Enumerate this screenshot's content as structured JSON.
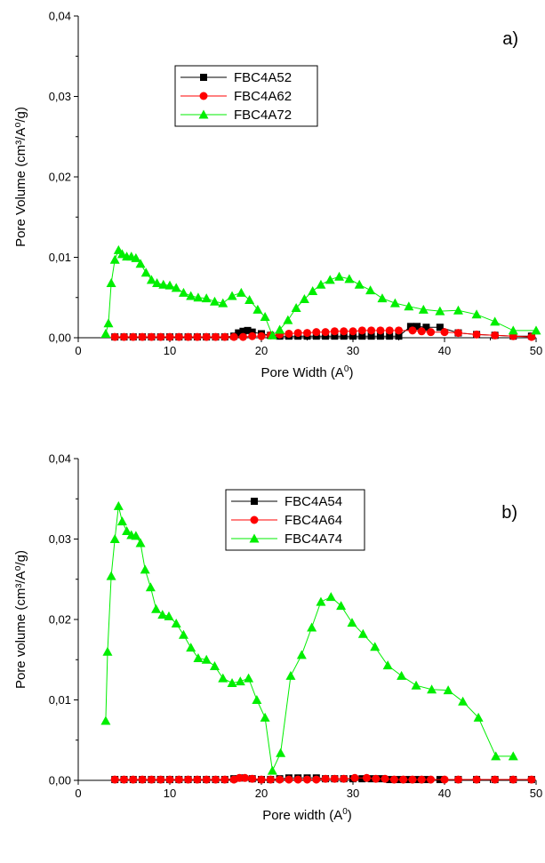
{
  "chart_data": [
    {
      "type": "line",
      "panel_label": "a)",
      "xlabel": "Pore Width (A",
      "xlabel_sup": "0",
      "xlabel_end": ")",
      "ylabel": "Pore Volume (cm³/A⁰/g)",
      "xlim": [
        0,
        50
      ],
      "ylim": [
        0,
        0.04
      ],
      "xticks": [
        0,
        10,
        20,
        30,
        40,
        50
      ],
      "yticks": [
        0,
        0.01,
        0.02,
        0.03,
        0.04
      ],
      "xtick_labels": [
        "0",
        "10",
        "20",
        "30",
        "40",
        "50"
      ],
      "ytick_labels": [
        "0,00",
        "0,01",
        "0,02",
        "0,03",
        "0,04"
      ],
      "legend_position": "upper-left",
      "series": [
        {
          "name": "FBC4A52",
          "color": "#000000",
          "marker": "square",
          "x": [
            4.0,
            5.0,
            6.0,
            7.0,
            8.0,
            9.0,
            10.0,
            11.0,
            12.0,
            13.0,
            14.0,
            15.0,
            16.0,
            17.0,
            17.5,
            18.0,
            18.5,
            19.0,
            20.0,
            21.0,
            22.0,
            23.0,
            24.0,
            25.0,
            26.0,
            27.0,
            28.0,
            29.0,
            30.0,
            31.0,
            32.0,
            33.0,
            34.0,
            35.0,
            36.3,
            37.0,
            38.0,
            39.5,
            41.5,
            43.5,
            45.5,
            47.5,
            49.5
          ],
          "y": [
            0.0001,
            0.0001,
            0.0001,
            0.0001,
            0.0001,
            0.0001,
            0.0001,
            0.0001,
            0.0001,
            0.0001,
            0.0001,
            0.0001,
            0.0001,
            0.0002,
            0.0006,
            0.0008,
            0.0009,
            0.0007,
            0.0005,
            0.0003,
            0.0002,
            0.0002,
            0.0002,
            0.0002,
            0.0002,
            0.0002,
            0.0002,
            0.0002,
            0.0002,
            0.0002,
            0.0002,
            0.0002,
            0.0002,
            0.0002,
            0.0014,
            0.0014,
            0.0013,
            0.0013,
            0.0006,
            0.0004,
            0.0003,
            0.0002,
            0.0002
          ]
        },
        {
          "name": "FBC4A62",
          "color": "#ff0000",
          "marker": "circle",
          "x": [
            4.0,
            5.0,
            6.0,
            7.0,
            8.0,
            9.0,
            10.0,
            11.0,
            12.0,
            13.0,
            14.0,
            15.0,
            16.0,
            17.0,
            18.0,
            19.0,
            20.0,
            21.0,
            22.0,
            23.0,
            24.0,
            25.0,
            26.0,
            27.0,
            28.0,
            29.0,
            30.0,
            31.0,
            32.0,
            33.0,
            34.0,
            35.0,
            36.5,
            37.5,
            38.5,
            40.0,
            41.5,
            43.5,
            45.5,
            47.5,
            49.5
          ],
          "y": [
            0.0001,
            0.0001,
            0.0001,
            0.0001,
            0.0001,
            0.0001,
            0.0001,
            0.0001,
            0.0001,
            0.0001,
            0.0001,
            0.0001,
            0.0001,
            0.0001,
            0.0001,
            0.0002,
            0.0002,
            0.0003,
            0.0004,
            0.0005,
            0.0006,
            0.0006,
            0.0007,
            0.0007,
            0.0008,
            0.0008,
            0.0008,
            0.0009,
            0.0009,
            0.0009,
            0.0009,
            0.0009,
            0.0009,
            0.0008,
            0.0007,
            0.0007,
            0.0006,
            0.0004,
            0.0003,
            0.0002,
            0.0001
          ]
        },
        {
          "name": "FBC4A72",
          "color": "#00ee00",
          "marker": "triangle",
          "x": [
            3.0,
            3.3,
            3.6,
            4.0,
            4.4,
            4.8,
            5.3,
            5.8,
            6.3,
            6.8,
            7.4,
            8.0,
            8.6,
            9.3,
            10.0,
            10.7,
            11.5,
            12.3,
            13.1,
            14.0,
            14.9,
            15.8,
            16.8,
            17.8,
            18.7,
            19.6,
            20.4,
            21.2,
            22.0,
            22.9,
            23.8,
            24.7,
            25.6,
            26.5,
            27.5,
            28.5,
            29.6,
            30.7,
            31.9,
            33.2,
            34.6,
            36.1,
            37.7,
            39.5,
            41.5,
            43.5,
            45.5,
            47.5,
            50.0
          ],
          "y": [
            0.0005,
            0.0018,
            0.0068,
            0.0097,
            0.0109,
            0.0104,
            0.0101,
            0.0101,
            0.0099,
            0.0092,
            0.0081,
            0.0072,
            0.0068,
            0.0066,
            0.0065,
            0.0062,
            0.0056,
            0.0052,
            0.005,
            0.0049,
            0.0045,
            0.0043,
            0.0052,
            0.0056,
            0.0047,
            0.0035,
            0.0026,
            0.0003,
            0.001,
            0.0022,
            0.0037,
            0.0048,
            0.0058,
            0.0066,
            0.0072,
            0.0076,
            0.0073,
            0.0066,
            0.0059,
            0.0049,
            0.0043,
            0.0039,
            0.0035,
            0.0033,
            0.0034,
            0.0029,
            0.002,
            0.0009,
            0.0009
          ]
        }
      ]
    },
    {
      "type": "line",
      "panel_label": "b)",
      "xlabel": "Pore width (A",
      "xlabel_sup": "0",
      "xlabel_end": ")",
      "ylabel": "Pore volume (cm³/A⁰/g)",
      "xlim": [
        0,
        50
      ],
      "ylim": [
        0,
        0.04
      ],
      "xticks": [
        0,
        10,
        20,
        30,
        40,
        50
      ],
      "yticks": [
        0,
        0.01,
        0.02,
        0.03,
        0.04
      ],
      "xtick_labels": [
        "0",
        "10",
        "20",
        "30",
        "40",
        "50"
      ],
      "ytick_labels": [
        "0,00",
        "0,01",
        "0,02",
        "0,03",
        "0,04"
      ],
      "legend_position": "upper-center",
      "series": [
        {
          "name": "FBC4A54",
          "color": "#000000",
          "marker": "square",
          "x": [
            4.0,
            5.0,
            6.0,
            7.0,
            8.0,
            9.0,
            10.0,
            11.0,
            12.0,
            13.0,
            14.0,
            15.0,
            16.0,
            17.0,
            18.0,
            19.0,
            20.0,
            21.0,
            22.0,
            23.0,
            24.0,
            25.0,
            26.0,
            27.0,
            28.0,
            29.0,
            30.0,
            31.0,
            32.0,
            33.0,
            34.0,
            35.0,
            36.0,
            37.0,
            38.0,
            39.5,
            41.5,
            43.5,
            45.5,
            47.5,
            49.5
          ],
          "y": [
            0.0001,
            0.0001,
            0.0001,
            0.0001,
            0.0001,
            0.0001,
            0.0001,
            0.0001,
            0.0001,
            0.0001,
            0.0001,
            0.0001,
            0.0001,
            0.0002,
            0.0003,
            0.0002,
            0.0001,
            0.0001,
            0.0002,
            0.0003,
            0.0003,
            0.0003,
            0.0003,
            0.0002,
            0.0002,
            0.0002,
            0.0002,
            0.0002,
            0.0002,
            0.0002,
            0.0001,
            0.0001,
            0.0001,
            0.0001,
            0.0001,
            0.0001,
            0.0001,
            0.0001,
            0.0001,
            0.0001,
            0.0001
          ]
        },
        {
          "name": "FBC4A64",
          "color": "#ff0000",
          "marker": "circle",
          "x": [
            4.0,
            5.0,
            6.0,
            7.0,
            8.0,
            9.0,
            10.0,
            11.0,
            12.0,
            13.0,
            14.0,
            15.0,
            16.0,
            17.0,
            17.6,
            18.2,
            19.0,
            20.0,
            21.0,
            22.0,
            23.0,
            24.0,
            25.0,
            26.0,
            27.0,
            28.0,
            29.0,
            30.2,
            31.5,
            32.5,
            33.5,
            34.5,
            35.5,
            36.5,
            37.5,
            38.5,
            40.0,
            41.5,
            43.5,
            45.5,
            47.5,
            49.5
          ],
          "y": [
            0.0001,
            0.0001,
            0.0001,
            0.0001,
            0.0001,
            0.0001,
            0.0001,
            0.0001,
            0.0001,
            0.0001,
            0.0001,
            0.0001,
            0.0001,
            0.0001,
            0.0003,
            0.0003,
            0.0002,
            0.0001,
            0.0001,
            0.0001,
            0.0001,
            0.0001,
            0.0001,
            0.0001,
            0.0002,
            0.0002,
            0.0002,
            0.0003,
            0.0003,
            0.0002,
            0.0002,
            0.0001,
            0.0001,
            0.0001,
            0.0001,
            0.0001,
            0.0001,
            0.0001,
            0.0001,
            0.0001,
            0.0001,
            0.0001
          ]
        },
        {
          "name": "FBC4A74",
          "color": "#00ee00",
          "marker": "triangle",
          "x": [
            3.0,
            3.2,
            3.6,
            4.0,
            4.4,
            4.8,
            5.3,
            5.8,
            6.3,
            6.8,
            7.3,
            7.9,
            8.5,
            9.2,
            9.9,
            10.7,
            11.5,
            12.3,
            13.1,
            14.0,
            14.9,
            15.8,
            16.8,
            17.7,
            18.6,
            19.5,
            20.4,
            21.2,
            22.1,
            23.2,
            24.4,
            25.5,
            26.5,
            27.6,
            28.7,
            29.9,
            31.1,
            32.4,
            33.8,
            35.3,
            36.9,
            38.6,
            40.4,
            42.0,
            43.7,
            45.6,
            47.5
          ],
          "y": [
            0.0074,
            0.016,
            0.0254,
            0.03,
            0.0341,
            0.0322,
            0.031,
            0.0305,
            0.0304,
            0.0295,
            0.0262,
            0.024,
            0.0213,
            0.0206,
            0.0204,
            0.0195,
            0.0181,
            0.0165,
            0.0152,
            0.015,
            0.0142,
            0.0127,
            0.0121,
            0.0123,
            0.0127,
            0.01,
            0.0078,
            0.0012,
            0.0034,
            0.013,
            0.0156,
            0.019,
            0.0222,
            0.0228,
            0.0217,
            0.0196,
            0.0182,
            0.0166,
            0.0143,
            0.013,
            0.0118,
            0.0113,
            0.0112,
            0.0098,
            0.0078,
            0.003,
            0.003
          ]
        }
      ]
    }
  ]
}
